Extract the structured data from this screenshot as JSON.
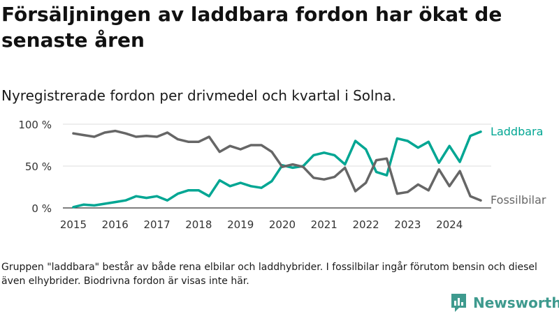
{
  "title": "Försäljningen av laddbara fordon har ökat de senaste åren",
  "subtitle": "Nyregistrerade fordon per drivmedel och kvartal i Solna.",
  "footnote": "Gruppen \"laddbara\" består av både rena elbilar och laddhybrider. I fossilbilar ingår förutom bensin och diesel även elhybrider. Biodrivna fordon är visas inte här.",
  "brand": {
    "name": "Newsworthy",
    "logo_icon": "newsworthy-logo-icon",
    "color": "#3e9a8e"
  },
  "chart_data": {
    "type": "line",
    "title": "Försäljningen av laddbara fordon har ökat de senaste åren",
    "subtitle": "Nyregistrerade fordon per drivmedel och kvartal i Solna.",
    "xlabel": "",
    "ylabel": "",
    "ylim": [
      0,
      100
    ],
    "yticks": [
      0,
      50,
      100
    ],
    "ytick_labels": [
      "0 %",
      "50 %",
      "100 %"
    ],
    "xticks": [
      2015,
      2016,
      2017,
      2018,
      2019,
      2020,
      2021,
      2022,
      2023,
      2024
    ],
    "xtick_labels": [
      "2015",
      "2016",
      "2017",
      "2018",
      "2019",
      "2020",
      "2021",
      "2022",
      "2023",
      "2024"
    ],
    "x": [
      2015.0,
      2015.25,
      2015.5,
      2015.75,
      2016.0,
      2016.25,
      2016.5,
      2016.75,
      2017.0,
      2017.25,
      2017.5,
      2017.75,
      2018.0,
      2018.25,
      2018.5,
      2018.75,
      2019.0,
      2019.25,
      2019.5,
      2019.75,
      2020.0,
      2020.25,
      2020.5,
      2020.75,
      2021.0,
      2021.25,
      2021.5,
      2021.75,
      2022.0,
      2022.25,
      2022.5,
      2022.75,
      2023.0,
      2023.25,
      2023.5,
      2023.75,
      2024.0,
      2024.25,
      2024.5,
      2024.75
    ],
    "grid": true,
    "legend": "direct labels at line ends",
    "series": [
      {
        "name": "Laddbara",
        "color": "#00a693",
        "values": [
          1,
          4,
          3,
          5,
          7,
          9,
          14,
          12,
          14,
          9,
          17,
          21,
          21,
          14,
          33,
          26,
          30,
          26,
          24,
          32,
          51,
          48,
          50,
          63,
          66,
          63,
          52,
          80,
          70,
          43,
          39,
          83,
          80,
          72,
          79,
          54,
          74,
          55,
          86,
          91
        ]
      },
      {
        "name": "Fossilbilar",
        "color": "#666666",
        "values": [
          89,
          87,
          85,
          90,
          92,
          89,
          85,
          86,
          85,
          90,
          82,
          79,
          79,
          85,
          67,
          74,
          70,
          75,
          75,
          67,
          49,
          52,
          49,
          36,
          34,
          37,
          48,
          20,
          30,
          57,
          59,
          17,
          19,
          28,
          21,
          46,
          26,
          44,
          14,
          9
        ]
      }
    ]
  }
}
